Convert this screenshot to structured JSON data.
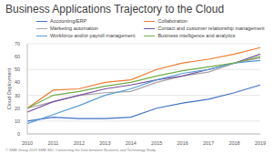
{
  "chart_data": {
    "type": "line",
    "title": "Business Applications Trajectory to the Cloud",
    "y_label": "Cloud Deployment",
    "footer": "© SMB Group 2019 SMB 360: Connecting the Dots between Business and Technology Study",
    "categories": [
      "2010",
      "2011",
      "2012",
      "2013",
      "2014",
      "2015",
      "2016",
      "2017",
      "2018",
      "2019"
    ],
    "series": [
      {
        "name": "Accounting/ERP",
        "color": "#4472c4",
        "values": [
          10,
          13,
          12,
          12,
          13,
          20,
          24,
          27,
          32,
          38
        ]
      },
      {
        "name": "Collaboration",
        "color": "#ed7d31",
        "values": [
          20,
          34,
          35,
          40,
          42,
          50,
          55,
          58,
          62,
          67
        ]
      },
      {
        "name": "Marketing automation",
        "color": "#a5a5a5",
        "values": [
          20,
          25,
          30,
          32,
          33,
          40,
          45,
          48,
          55,
          59
        ]
      },
      {
        "name": "Contact and customer relationship management",
        "color": "#7a4fa0",
        "values": [
          17,
          25,
          30,
          35,
          38,
          42,
          45,
          50,
          55,
          62
        ]
      },
      {
        "name": "Workforce and/or payroll management",
        "color": "#5b9bd5",
        "values": [
          8,
          15,
          22,
          30,
          35,
          42,
          47,
          50,
          55,
          57
        ]
      },
      {
        "name": "Business intelligence and analytics",
        "color": "#70ad47",
        "values": [
          20,
          30,
          33,
          37,
          40,
          45,
          49,
          52,
          55,
          60
        ]
      }
    ],
    "ylim": [
      0,
      70
    ],
    "yticks": [
      0,
      10,
      20,
      30,
      40,
      50,
      60,
      70
    ],
    "grid": true,
    "legend": "top"
  }
}
